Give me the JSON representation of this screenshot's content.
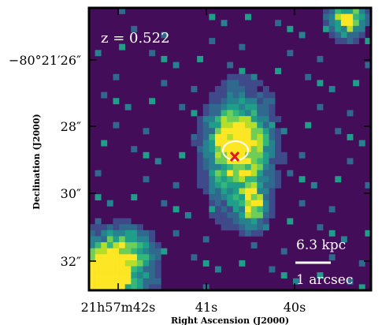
{
  "panel": {
    "redshift_label": "z = 0.522",
    "x_axis_title": "Right Ascension (J2000)",
    "y_axis_title": "Declination (J2000)",
    "y_tick_labels": [
      "−80°21′26″",
      "28″",
      "30″",
      "32″"
    ],
    "x_tick_labels": [
      "21h57m42s",
      "41s",
      "40s"
    ],
    "scalebar_top_label": "6.3 kpc",
    "scalebar_bottom_label": "1 arcsec"
  },
  "colors": {
    "background": "#440d5a",
    "frame": "#000000",
    "ellipse": "#ffffff",
    "marker": "#e8141d",
    "colormap": [
      "#482878",
      "#3e4a89",
      "#31688e",
      "#26828e",
      "#1f9e89",
      "#35b779",
      "#6ece58",
      "#b5de2b",
      "#fde725"
    ]
  },
  "image": {
    "colormap_name": "viridis",
    "pixel_grid": "47x47"
  }
}
